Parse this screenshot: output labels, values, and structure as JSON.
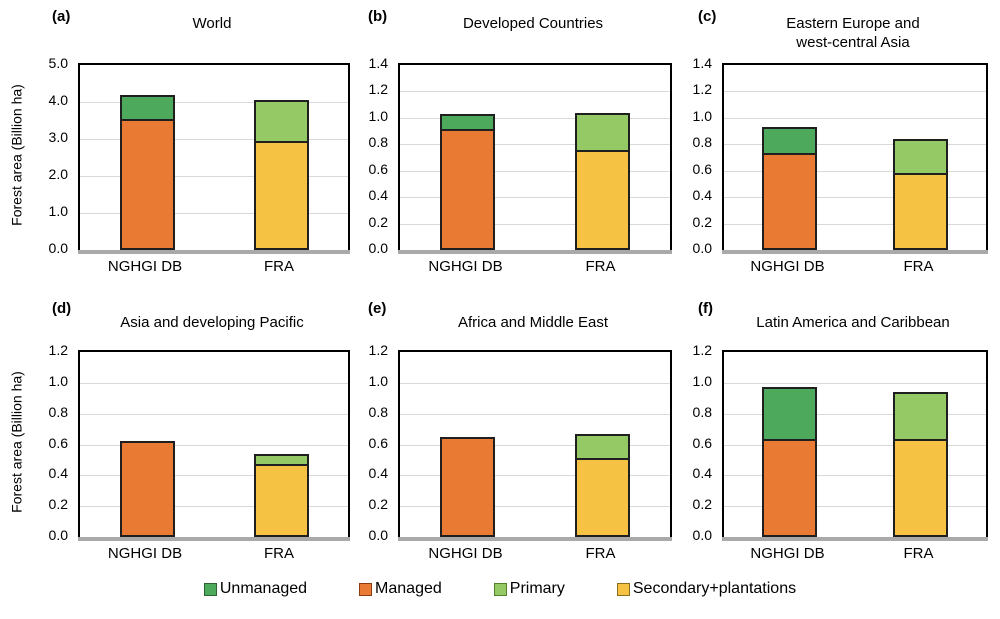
{
  "figure": {
    "background": "#FFFFFF",
    "y_axis_label": "Forest area (Billion ha)",
    "categories": [
      "NGHGI DB",
      "FRA"
    ],
    "colors": {
      "unmanaged": "#4DA95B",
      "managed": "#E87A33",
      "primary": "#94C965",
      "secondary_plantations": "#F5C244",
      "bar_border": "#1F1F1F",
      "gridline": "#D9D9D9",
      "axis_line": "#A9A9A9",
      "frame": "#000000"
    },
    "legend": [
      {
        "label": "Unmanaged",
        "color": "#4DA95B",
        "border": "#2F6132"
      },
      {
        "label": "Managed",
        "color": "#E87A33",
        "border": "#8E3B12"
      },
      {
        "label": "Primary",
        "color": "#94C965",
        "border": "#567F2B"
      },
      {
        "label": "Secondary+plantations",
        "color": "#F5C244",
        "border": "#8A6D1F"
      }
    ]
  },
  "chart_data": [
    {
      "type": "bar",
      "stacked": true,
      "panel_label": "(a)",
      "title": "World",
      "title_lines": [
        "World"
      ],
      "ylabel": "Forest area (Billion ha)",
      "ylim": [
        0,
        5.0
      ],
      "ytick_step": 1.0,
      "ytick_labels": [
        "5.0",
        "4.0",
        "3.0",
        "2.0",
        "1.0",
        "0.0"
      ],
      "categories": [
        "NGHGI DB",
        "FRA"
      ],
      "stacks": [
        [
          {
            "name": "Managed",
            "color_key": "managed",
            "value": 3.5
          },
          {
            "name": "Unmanaged",
            "color_key": "unmanaged",
            "value": 0.7
          }
        ],
        [
          {
            "name": "Secondary+plantations",
            "color_key": "secondary_plantations",
            "value": 2.9
          },
          {
            "name": "Primary",
            "color_key": "primary",
            "value": 1.15
          }
        ]
      ]
    },
    {
      "type": "bar",
      "stacked": true,
      "panel_label": "(b)",
      "title": "Developed Countries",
      "title_lines": [
        "Developed Countries"
      ],
      "ylabel": "",
      "ylim": [
        0,
        1.4
      ],
      "ytick_step": 0.2,
      "ytick_labels": [
        "1.4",
        "1.2",
        "1.0",
        "0.8",
        "0.6",
        "0.4",
        "0.2",
        "0.0"
      ],
      "categories": [
        "NGHGI DB",
        "FRA"
      ],
      "stacks": [
        [
          {
            "name": "Managed",
            "color_key": "managed",
            "value": 0.9
          },
          {
            "name": "Unmanaged",
            "color_key": "unmanaged",
            "value": 0.13
          }
        ],
        [
          {
            "name": "Secondary+plantations",
            "color_key": "secondary_plantations",
            "value": 0.74
          },
          {
            "name": "Primary",
            "color_key": "primary",
            "value": 0.3
          }
        ]
      ]
    },
    {
      "type": "bar",
      "stacked": true,
      "panel_label": "(c)",
      "title": "Eastern Europe and west-central Asia",
      "title_lines": [
        "Eastern Europe and",
        "west-central Asia"
      ],
      "ylabel": "",
      "ylim": [
        0,
        1.4
      ],
      "ytick_step": 0.2,
      "ytick_labels": [
        "1.4",
        "1.2",
        "1.0",
        "0.8",
        "0.6",
        "0.4",
        "0.2",
        "0.0"
      ],
      "categories": [
        "NGHGI DB",
        "FRA"
      ],
      "stacks": [
        [
          {
            "name": "Managed",
            "color_key": "managed",
            "value": 0.72
          },
          {
            "name": "Unmanaged",
            "color_key": "unmanaged",
            "value": 0.21
          }
        ],
        [
          {
            "name": "Secondary+plantations",
            "color_key": "secondary_plantations",
            "value": 0.57
          },
          {
            "name": "Primary",
            "color_key": "primary",
            "value": 0.27
          }
        ]
      ]
    },
    {
      "type": "bar",
      "stacked": true,
      "panel_label": "(d)",
      "title": "Asia and developing Pacific",
      "title_lines": [
        "Asia and developing Pacific"
      ],
      "ylabel": "Forest area (Billion ha)",
      "ylim": [
        0,
        1.2
      ],
      "ytick_step": 0.2,
      "ytick_labels": [
        "1.2",
        "1.0",
        "0.8",
        "0.6",
        "0.4",
        "0.2",
        "0.0"
      ],
      "categories": [
        "NGHGI DB",
        "FRA"
      ],
      "stacks": [
        [
          {
            "name": "Managed",
            "color_key": "managed",
            "value": 0.62
          },
          {
            "name": "Unmanaged",
            "color_key": "unmanaged",
            "value": 0.0
          }
        ],
        [
          {
            "name": "Secondary+plantations",
            "color_key": "secondary_plantations",
            "value": 0.46
          },
          {
            "name": "Primary",
            "color_key": "primary",
            "value": 0.08
          }
        ]
      ]
    },
    {
      "type": "bar",
      "stacked": true,
      "panel_label": "(e)",
      "title": "Africa and Middle East",
      "title_lines": [
        "Africa and Middle East"
      ],
      "ylabel": "",
      "ylim": [
        0,
        1.2
      ],
      "ytick_step": 0.2,
      "ytick_labels": [
        "1.2",
        "1.0",
        "0.8",
        "0.6",
        "0.4",
        "0.2",
        "0.0"
      ],
      "categories": [
        "NGHGI DB",
        "FRA"
      ],
      "stacks": [
        [
          {
            "name": "Managed",
            "color_key": "managed",
            "value": 0.65
          },
          {
            "name": "Unmanaged",
            "color_key": "unmanaged",
            "value": 0.0
          }
        ],
        [
          {
            "name": "Secondary+plantations",
            "color_key": "secondary_plantations",
            "value": 0.5
          },
          {
            "name": "Primary",
            "color_key": "primary",
            "value": 0.17
          }
        ]
      ]
    },
    {
      "type": "bar",
      "stacked": true,
      "panel_label": "(f)",
      "title": "Latin America and Caribbean",
      "title_lines": [
        "Latin America and Caribbean"
      ],
      "ylabel": "",
      "ylim": [
        0,
        1.2
      ],
      "ytick_step": 0.2,
      "ytick_labels": [
        "1.2",
        "1.0",
        "0.8",
        "0.6",
        "0.4",
        "0.2",
        "0.0"
      ],
      "categories": [
        "NGHGI DB",
        "FRA"
      ],
      "stacks": [
        [
          {
            "name": "Managed",
            "color_key": "managed",
            "value": 0.62
          },
          {
            "name": "Unmanaged",
            "color_key": "unmanaged",
            "value": 0.35
          }
        ],
        [
          {
            "name": "Secondary+plantations",
            "color_key": "secondary_plantations",
            "value": 0.62
          },
          {
            "name": "Primary",
            "color_key": "primary",
            "value": 0.32
          }
        ]
      ]
    }
  ]
}
